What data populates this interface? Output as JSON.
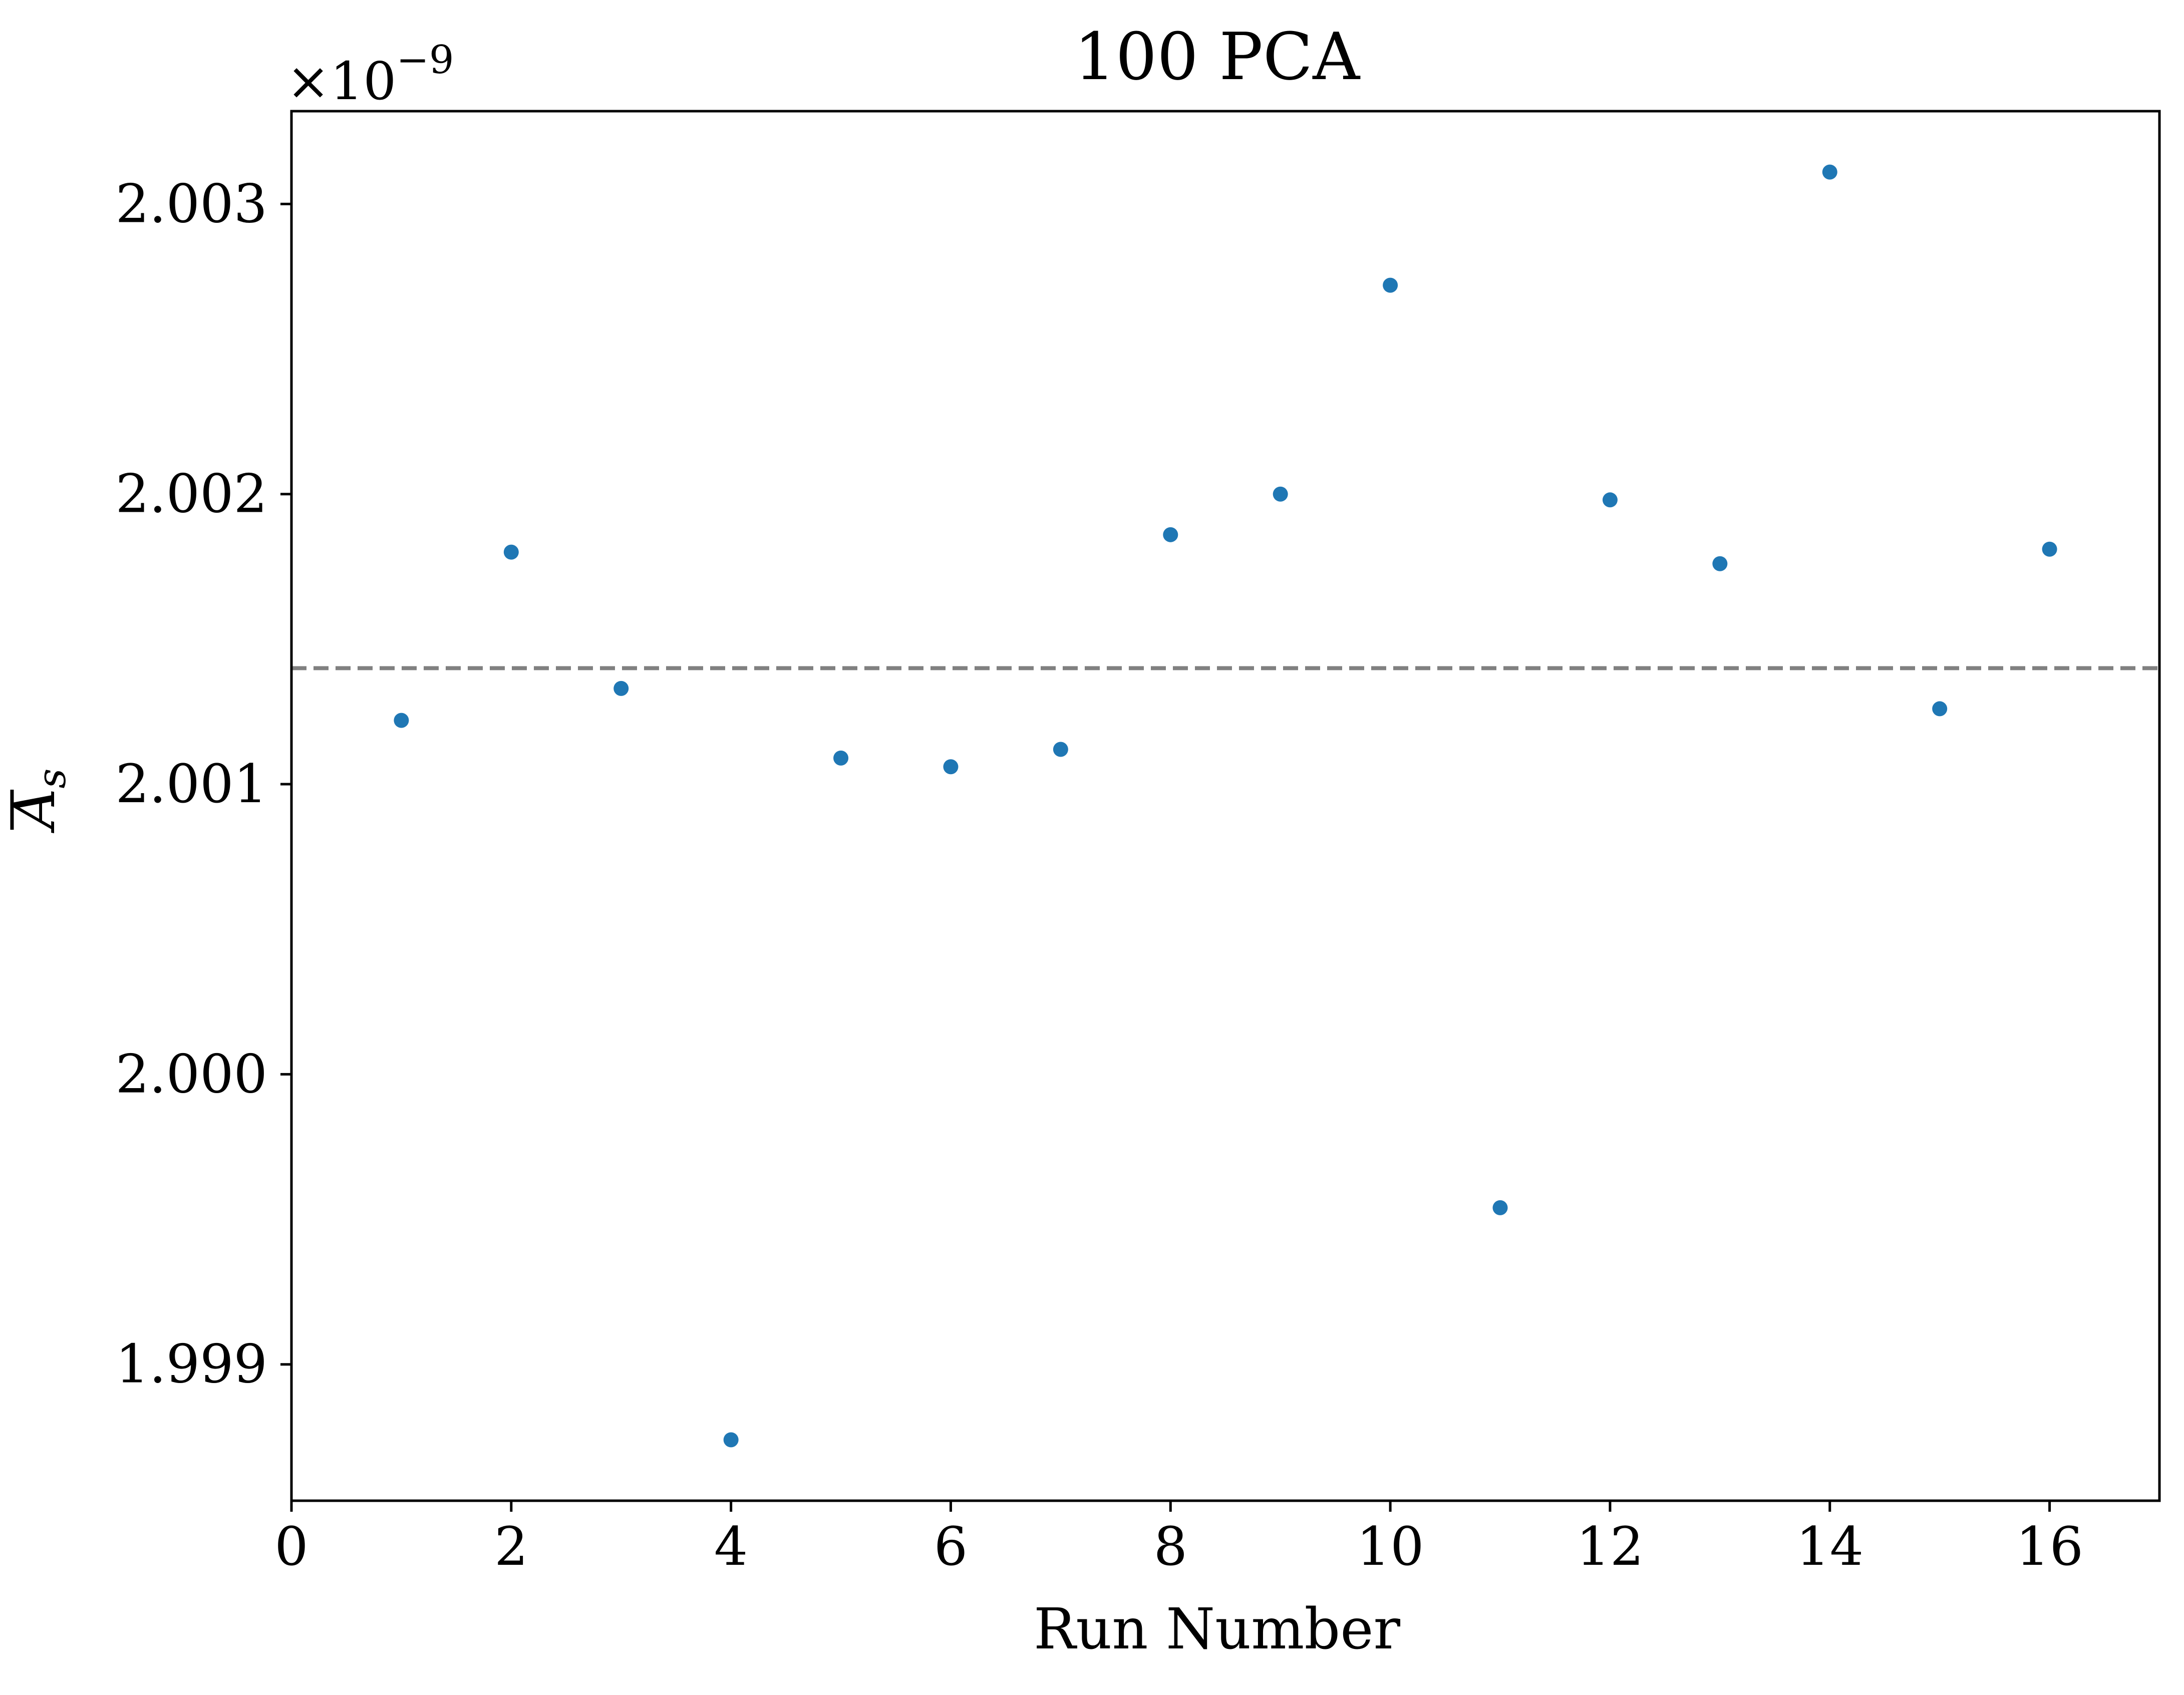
{
  "chart_data": {
    "type": "scatter",
    "title": "100 PCA",
    "xlabel": "Run Number",
    "ylabel": "A_s",
    "ylabel_overline": true,
    "y_offset_text": "×10",
    "y_offset_exponent": "−9",
    "xlim": [
      0,
      17
    ],
    "ylim": [
      1.99853,
      2.00332
    ],
    "x_ticks": [
      0,
      2,
      4,
      6,
      8,
      10,
      12,
      14,
      16
    ],
    "x_tick_labels": [
      "0",
      "2",
      "4",
      "6",
      "8",
      "10",
      "12",
      "14",
      "16"
    ],
    "y_ticks": [
      1.999,
      2.0,
      2.001,
      2.002,
      2.003
    ],
    "y_tick_labels": [
      "1.999",
      "2.000",
      "2.001",
      "2.002",
      "2.003"
    ],
    "grid": false,
    "marker_color": "#1f77b4",
    "reference_line": {
      "y": 2.0014,
      "style": "dashed",
      "color": "#808080"
    },
    "series": [
      {
        "x": [
          1,
          2,
          3,
          4,
          5,
          6,
          7,
          8,
          9,
          10,
          11,
          12,
          13,
          14,
          15,
          16
        ],
        "y": [
          2.00122,
          2.0018,
          2.00133,
          1.99874,
          2.00109,
          2.00106,
          2.00112,
          2.00186,
          2.002,
          2.00272,
          1.99954,
          2.00198,
          2.00176,
          2.00311,
          2.00126,
          2.00181
        ]
      }
    ]
  }
}
